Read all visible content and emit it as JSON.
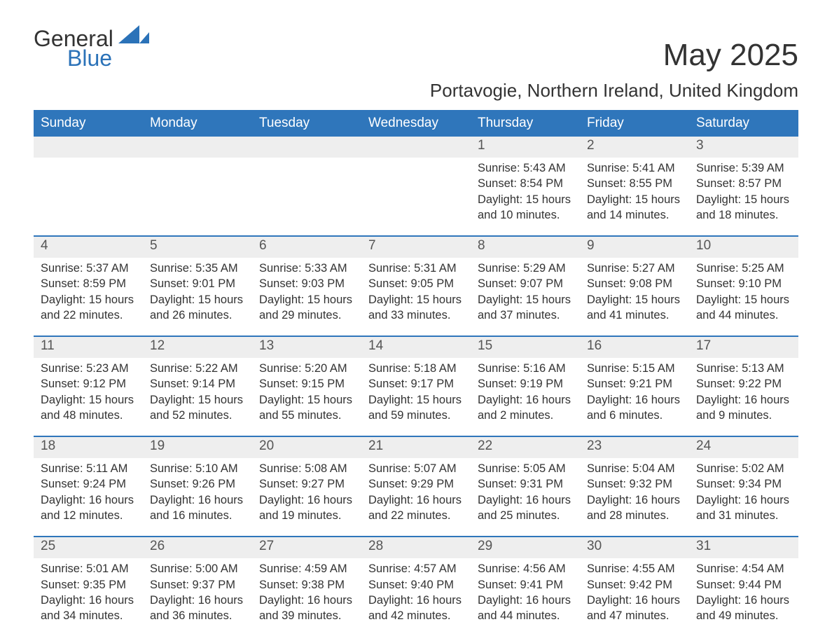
{
  "brand": {
    "name1": "General",
    "name2": "Blue",
    "logo_color": "#2b72b8",
    "text_color": "#333333"
  },
  "title": "May 2025",
  "subtitle": "Portavogie, Northern Ireland, United Kingdom",
  "columns": [
    "Sunday",
    "Monday",
    "Tuesday",
    "Wednesday",
    "Thursday",
    "Friday",
    "Saturday"
  ],
  "colors": {
    "header_bg": "#2f76bb",
    "header_text": "#ffffff",
    "daynum_bg": "#eeeeee",
    "rule": "#2f76bb",
    "body_text": "#333333",
    "background": "#ffffff"
  },
  "font_sizes": {
    "title": 44,
    "subtitle": 26,
    "header": 19,
    "daynum": 19,
    "body": 16.5
  },
  "weeks": [
    [
      null,
      null,
      null,
      null,
      {
        "day": "1",
        "sunrise": "Sunrise: 5:43 AM",
        "sunset": "Sunset: 8:54 PM",
        "daylight1": "Daylight: 15 hours",
        "daylight2": "and 10 minutes."
      },
      {
        "day": "2",
        "sunrise": "Sunrise: 5:41 AM",
        "sunset": "Sunset: 8:55 PM",
        "daylight1": "Daylight: 15 hours",
        "daylight2": "and 14 minutes."
      },
      {
        "day": "3",
        "sunrise": "Sunrise: 5:39 AM",
        "sunset": "Sunset: 8:57 PM",
        "daylight1": "Daylight: 15 hours",
        "daylight2": "and 18 minutes."
      }
    ],
    [
      {
        "day": "4",
        "sunrise": "Sunrise: 5:37 AM",
        "sunset": "Sunset: 8:59 PM",
        "daylight1": "Daylight: 15 hours",
        "daylight2": "and 22 minutes."
      },
      {
        "day": "5",
        "sunrise": "Sunrise: 5:35 AM",
        "sunset": "Sunset: 9:01 PM",
        "daylight1": "Daylight: 15 hours",
        "daylight2": "and 26 minutes."
      },
      {
        "day": "6",
        "sunrise": "Sunrise: 5:33 AM",
        "sunset": "Sunset: 9:03 PM",
        "daylight1": "Daylight: 15 hours",
        "daylight2": "and 29 minutes."
      },
      {
        "day": "7",
        "sunrise": "Sunrise: 5:31 AM",
        "sunset": "Sunset: 9:05 PM",
        "daylight1": "Daylight: 15 hours",
        "daylight2": "and 33 minutes."
      },
      {
        "day": "8",
        "sunrise": "Sunrise: 5:29 AM",
        "sunset": "Sunset: 9:07 PM",
        "daylight1": "Daylight: 15 hours",
        "daylight2": "and 37 minutes."
      },
      {
        "day": "9",
        "sunrise": "Sunrise: 5:27 AM",
        "sunset": "Sunset: 9:08 PM",
        "daylight1": "Daylight: 15 hours",
        "daylight2": "and 41 minutes."
      },
      {
        "day": "10",
        "sunrise": "Sunrise: 5:25 AM",
        "sunset": "Sunset: 9:10 PM",
        "daylight1": "Daylight: 15 hours",
        "daylight2": "and 44 minutes."
      }
    ],
    [
      {
        "day": "11",
        "sunrise": "Sunrise: 5:23 AM",
        "sunset": "Sunset: 9:12 PM",
        "daylight1": "Daylight: 15 hours",
        "daylight2": "and 48 minutes."
      },
      {
        "day": "12",
        "sunrise": "Sunrise: 5:22 AM",
        "sunset": "Sunset: 9:14 PM",
        "daylight1": "Daylight: 15 hours",
        "daylight2": "and 52 minutes."
      },
      {
        "day": "13",
        "sunrise": "Sunrise: 5:20 AM",
        "sunset": "Sunset: 9:15 PM",
        "daylight1": "Daylight: 15 hours",
        "daylight2": "and 55 minutes."
      },
      {
        "day": "14",
        "sunrise": "Sunrise: 5:18 AM",
        "sunset": "Sunset: 9:17 PM",
        "daylight1": "Daylight: 15 hours",
        "daylight2": "and 59 minutes."
      },
      {
        "day": "15",
        "sunrise": "Sunrise: 5:16 AM",
        "sunset": "Sunset: 9:19 PM",
        "daylight1": "Daylight: 16 hours",
        "daylight2": "and 2 minutes."
      },
      {
        "day": "16",
        "sunrise": "Sunrise: 5:15 AM",
        "sunset": "Sunset: 9:21 PM",
        "daylight1": "Daylight: 16 hours",
        "daylight2": "and 6 minutes."
      },
      {
        "day": "17",
        "sunrise": "Sunrise: 5:13 AM",
        "sunset": "Sunset: 9:22 PM",
        "daylight1": "Daylight: 16 hours",
        "daylight2": "and 9 minutes."
      }
    ],
    [
      {
        "day": "18",
        "sunrise": "Sunrise: 5:11 AM",
        "sunset": "Sunset: 9:24 PM",
        "daylight1": "Daylight: 16 hours",
        "daylight2": "and 12 minutes."
      },
      {
        "day": "19",
        "sunrise": "Sunrise: 5:10 AM",
        "sunset": "Sunset: 9:26 PM",
        "daylight1": "Daylight: 16 hours",
        "daylight2": "and 16 minutes."
      },
      {
        "day": "20",
        "sunrise": "Sunrise: 5:08 AM",
        "sunset": "Sunset: 9:27 PM",
        "daylight1": "Daylight: 16 hours",
        "daylight2": "and 19 minutes."
      },
      {
        "day": "21",
        "sunrise": "Sunrise: 5:07 AM",
        "sunset": "Sunset: 9:29 PM",
        "daylight1": "Daylight: 16 hours",
        "daylight2": "and 22 minutes."
      },
      {
        "day": "22",
        "sunrise": "Sunrise: 5:05 AM",
        "sunset": "Sunset: 9:31 PM",
        "daylight1": "Daylight: 16 hours",
        "daylight2": "and 25 minutes."
      },
      {
        "day": "23",
        "sunrise": "Sunrise: 5:04 AM",
        "sunset": "Sunset: 9:32 PM",
        "daylight1": "Daylight: 16 hours",
        "daylight2": "and 28 minutes."
      },
      {
        "day": "24",
        "sunrise": "Sunrise: 5:02 AM",
        "sunset": "Sunset: 9:34 PM",
        "daylight1": "Daylight: 16 hours",
        "daylight2": "and 31 minutes."
      }
    ],
    [
      {
        "day": "25",
        "sunrise": "Sunrise: 5:01 AM",
        "sunset": "Sunset: 9:35 PM",
        "daylight1": "Daylight: 16 hours",
        "daylight2": "and 34 minutes."
      },
      {
        "day": "26",
        "sunrise": "Sunrise: 5:00 AM",
        "sunset": "Sunset: 9:37 PM",
        "daylight1": "Daylight: 16 hours",
        "daylight2": "and 36 minutes."
      },
      {
        "day": "27",
        "sunrise": "Sunrise: 4:59 AM",
        "sunset": "Sunset: 9:38 PM",
        "daylight1": "Daylight: 16 hours",
        "daylight2": "and 39 minutes."
      },
      {
        "day": "28",
        "sunrise": "Sunrise: 4:57 AM",
        "sunset": "Sunset: 9:40 PM",
        "daylight1": "Daylight: 16 hours",
        "daylight2": "and 42 minutes."
      },
      {
        "day": "29",
        "sunrise": "Sunrise: 4:56 AM",
        "sunset": "Sunset: 9:41 PM",
        "daylight1": "Daylight: 16 hours",
        "daylight2": "and 44 minutes."
      },
      {
        "day": "30",
        "sunrise": "Sunrise: 4:55 AM",
        "sunset": "Sunset: 9:42 PM",
        "daylight1": "Daylight: 16 hours",
        "daylight2": "and 47 minutes."
      },
      {
        "day": "31",
        "sunrise": "Sunrise: 4:54 AM",
        "sunset": "Sunset: 9:44 PM",
        "daylight1": "Daylight: 16 hours",
        "daylight2": "and 49 minutes."
      }
    ]
  ]
}
